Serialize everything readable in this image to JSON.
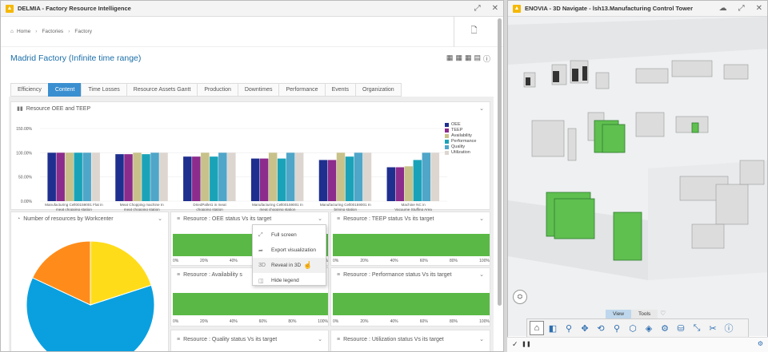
{
  "left_window": {
    "title": "DELMIA - Factory Resource Intelligence",
    "breadcrumb": [
      "Home",
      "Factories",
      "Factory"
    ],
    "page_title": "Madrid Factory (Infinite time range)",
    "tabs": [
      "Efficiency",
      "Content",
      "Time Losses",
      "Resource Assets Gantt",
      "Production",
      "Downtimes",
      "Performance",
      "Events",
      "Organization"
    ],
    "active_tab": "Content",
    "oee_card": {
      "title": "Resource OEE and TEEP"
    },
    "pie_card": {
      "title": "Number of resources by Workcenter"
    },
    "small_cards": {
      "oee_status": "Resource : OEE status Vs its target",
      "teep_status": "Resource : TEEP status Vs its target",
      "availability_status": "Resource : Availability s",
      "performance_status": "Resource : Performance status Vs its target",
      "quality_status": "Resource : Quality status Vs its target",
      "utilization_status": "Resource : Utilization status Vs its target"
    },
    "axis_ticks": [
      "0%",
      "20%",
      "40%",
      "60%",
      "80%",
      "100%"
    ],
    "context_menu": [
      "Full screen",
      "Export visualization",
      "Reveal in 3D",
      "Hide legend"
    ]
  },
  "right_window": {
    "title": "ENOVIA - 3D Navigate - lsh13.Manufacturing Control Tower",
    "view_tabs": [
      "View",
      "Tools"
    ],
    "active_view_tab": "View"
  },
  "colors": {
    "oee": "#1f2f8f",
    "teep": "#8c2c8c",
    "availability": "#c8c28a",
    "performance": "#1aa3b8",
    "quality": "#4fa6c9",
    "utilization": "#ddd6d0",
    "status_green": "#5ab946",
    "pie_blue": "#0aa0e0",
    "pie_orange": "#ff8c1a",
    "pie_yellow": "#ffdc1a"
  },
  "chart_data": [
    {
      "type": "bar",
      "title": "Resource OEE and TEEP",
      "categories": [
        "Manufacturing Cell00159001 Flat in meat chopping station",
        "Meat Chopping machine In meat chopping station",
        "DriedPallet1 in meat chopping station",
        "Manufacturing Cell00159001 In meat chopping station",
        "Manufacturing Cell00159001 In brining station",
        "Machine NC in Vacuume Stuffing Area"
      ],
      "ylim": [
        0,
        150
      ],
      "yticks": [
        "150.00%",
        "100.00%",
        "50.00%",
        "0.00%"
      ],
      "legend_position": "right",
      "series": [
        {
          "name": "OEE",
          "values": [
            100,
            97,
            92,
            88,
            85,
            70
          ]
        },
        {
          "name": "TEEP",
          "values": [
            100,
            97,
            92,
            88,
            85,
            70
          ]
        },
        {
          "name": "Availability",
          "values": [
            100,
            100,
            100,
            100,
            100,
            72
          ]
        },
        {
          "name": "Performance",
          "values": [
            100,
            97,
            92,
            88,
            92,
            85
          ]
        },
        {
          "name": "Quality",
          "values": [
            100,
            100,
            100,
            100,
            100,
            100
          ]
        },
        {
          "name": "Utilization",
          "values": [
            100,
            100,
            100,
            100,
            100,
            100
          ]
        }
      ]
    },
    {
      "type": "pie",
      "title": "Number of resources by Workcenter",
      "slices": [
        {
          "label": "",
          "value": 62
        },
        {
          "label": "",
          "value": 18
        },
        {
          "label": "",
          "value": 20
        }
      ]
    }
  ]
}
